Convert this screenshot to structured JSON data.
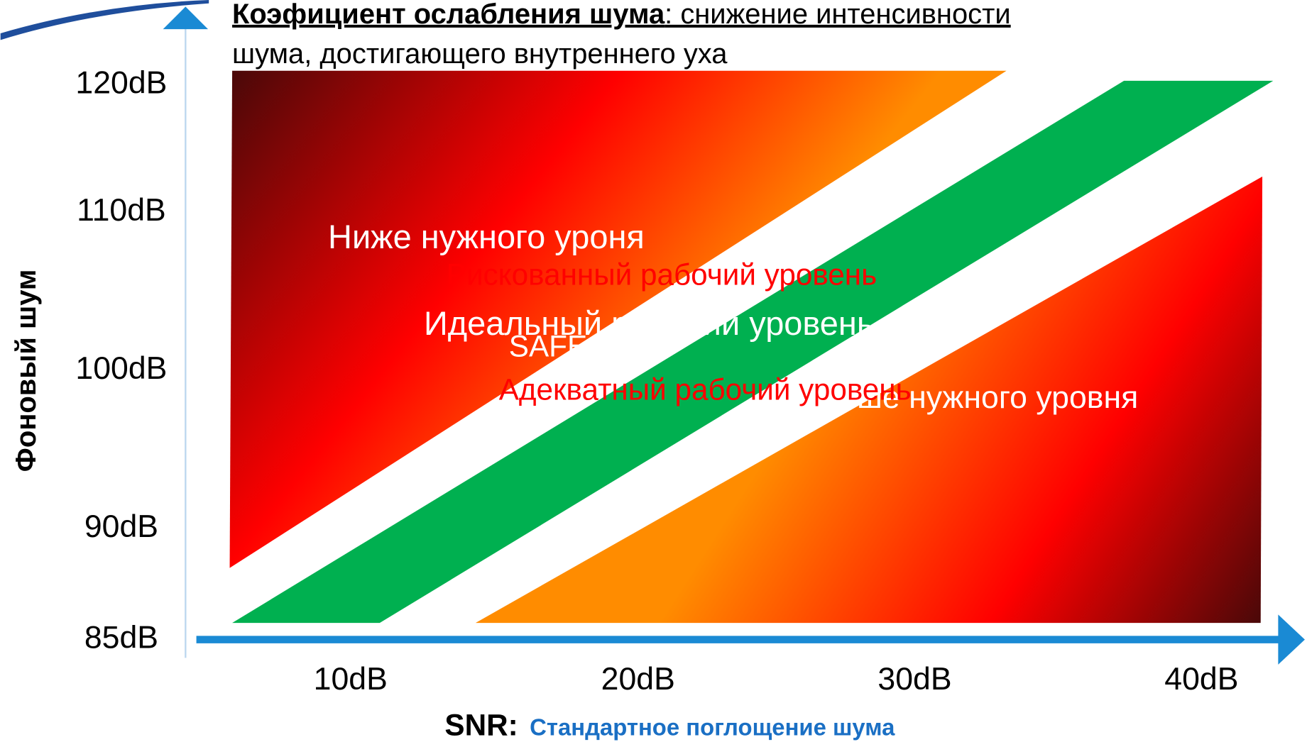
{
  "header": {
    "title_bold": "Коэфициент ослабления шума",
    "title_rest_line1": ": снижение интенсивности",
    "title_rest_line2": "шума, достигающего внутреннего уха"
  },
  "y_axis": {
    "label": "Фоновый шум",
    "ticks": [
      "120dB",
      "110dB",
      "100dB",
      "90dB",
      "85dB"
    ]
  },
  "x_axis": {
    "label_bold": "SNR:",
    "label_rest": "Стандартное поглощение шума",
    "ticks": [
      "10dB",
      "20dB",
      "30dB",
      "40dB"
    ]
  },
  "regions": {
    "below": "Ниже нужного уроня",
    "risky": "Рискованный рабочий уровень",
    "ideal": "Идеальный рабочий  уровень",
    "safe": "SAFE",
    "adequate": "Адекватный рабочий уровень",
    "above": "Выше нужного уровня"
  }
}
